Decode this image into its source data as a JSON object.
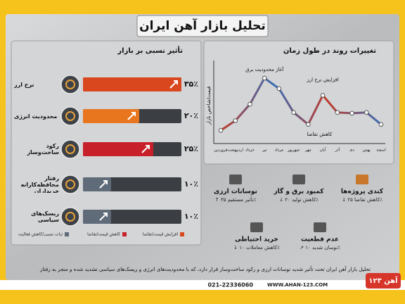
{
  "header": {
    "title": "تحلیل بازار آهن ایران"
  },
  "chart_data": [
    {
      "type": "hbar",
      "title": "تأثیر نسبی بر بازار",
      "categories": [
        "نرخ ارز",
        "محدودیت انرژی",
        "رکود ساخت‌وساز",
        "رفتار محافظه‌کارانه خریداران",
        "ریسک‌های سیاسی"
      ],
      "values": [
        35,
        20,
        25,
        10,
        10
      ],
      "value_labels": [
        "۳۵٪",
        "۲۰٪",
        "۲۵٪",
        "۱۰٪",
        "۱۰٪"
      ],
      "colors": [
        "#d9471f",
        "#e8761e",
        "#c8202a",
        "#5f6b78",
        "#5f6b78"
      ],
      "xlim": [
        0,
        40
      ],
      "legend": [
        "افزایش قیمت/تقاضا",
        "کاهش قیمت/تقاضا",
        "ثبات نسبی/کاهش فعالیت"
      ]
    },
    {
      "type": "line",
      "title": "تغییرات روند در طول زمان",
      "ylabel": "قیمت/شاخص بازار",
      "categories": [
        "فروردین",
        "اردیبهشت",
        "خرداد",
        "تیر",
        "مرداد",
        "شهریور",
        "مهر",
        "آبان",
        "آذر",
        "دی",
        "بهمن",
        "اسفند"
      ],
      "values": [
        12,
        25,
        47,
        82,
        68,
        36,
        20,
        59,
        36,
        35,
        36,
        20
      ],
      "ylim": [
        0,
        100
      ],
      "colors": [
        "#c0392b",
        "#3b6fb6"
      ],
      "annotations": [
        "آغاز محدودیت برق",
        "افزایش نرخ ارز",
        "کاهش تقاضا"
      ]
    }
  ],
  "cards": [
    {
      "title": "کندی پروژه‌ها",
      "note": "↓ کاهش تقاضا ۲۵٪"
    },
    {
      "title": "کمبود برق و گاز",
      "note": "↓ کاهش تولید ۲۰٪"
    },
    {
      "title": "نوسانات ارزی",
      "note": "↑ تأثیر مستقیم ۳۵٪"
    },
    {
      "title": "عدم قطعیت",
      "note": "↗ نوسان شدید ۱۰٪"
    },
    {
      "title": "خرید احتیاطی",
      "note": "↓ کاهش معاملات ۱۰٪"
    }
  ],
  "footer": {
    "text": "تحلیل بازار آهن ایران تحت تأثیر شدید نوسانات ارزی و رکود ساخت‌وساز قرار دارد، که با محدودیت‌های انرژی و ریسک‌های سیاسی تشدید شده و منجر به رفتار",
    "phone": "021-22336060",
    "website": "WWW.AHAN-123.COM",
    "logo": "آهن ۱۲۳"
  }
}
